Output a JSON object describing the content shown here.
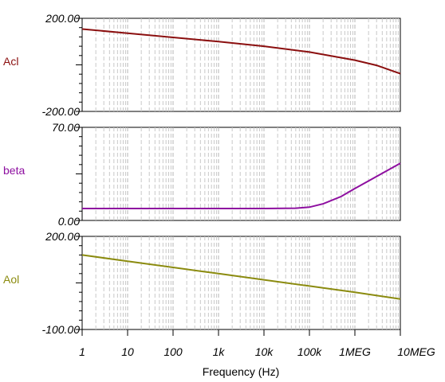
{
  "chart_data": [
    {
      "type": "line",
      "name": "Acl",
      "color": "#8b0f0f",
      "xscale": "log",
      "xlim": [
        1,
        10000000
      ],
      "ylim": [
        -200,
        200
      ],
      "ytick_labels": [
        "200.00",
        "-200.00"
      ],
      "series": [
        {
          "name": "Acl",
          "x": [
            1,
            10,
            100,
            1000,
            10000,
            100000,
            1000000,
            3000000,
            10000000
          ],
          "y": [
            154,
            136,
            118,
            100,
            80,
            55,
            20,
            -2,
            -38
          ]
        }
      ]
    },
    {
      "type": "line",
      "name": "beta",
      "color": "#8e0fa0",
      "xscale": "log",
      "xlim": [
        1,
        10000000
      ],
      "ylim": [
        0,
        70
      ],
      "ytick_labels": [
        "70.00",
        "0.00"
      ],
      "series": [
        {
          "name": "beta",
          "x": [
            1,
            10,
            100,
            1000,
            10000,
            50000,
            100000,
            200000,
            500000,
            1000000,
            3000000,
            10000000
          ],
          "y": [
            9,
            9,
            9,
            9,
            9,
            9.2,
            10,
            12.5,
            18,
            24,
            33,
            43
          ]
        }
      ]
    },
    {
      "type": "line",
      "name": "Aol",
      "color": "#8b8b0f",
      "xscale": "log",
      "xlim": [
        1,
        10000000
      ],
      "ylim": [
        -100,
        200
      ],
      "ytick_labels": [
        "200.00",
        "-100.00"
      ],
      "series": [
        {
          "name": "Aol",
          "x": [
            1,
            10,
            100,
            1000,
            10000,
            100000,
            1000000,
            10000000
          ],
          "y": [
            140,
            120,
            100,
            80,
            60,
            40,
            20,
            -2
          ]
        }
      ]
    }
  ],
  "x_axis": {
    "title": "Frequency (Hz)",
    "tick_values": [
      1,
      10,
      100,
      1000,
      10000,
      100000,
      1000000,
      10000000
    ],
    "tick_labels": [
      "1",
      "10",
      "100",
      "1k",
      "10k",
      "100k",
      "1MEG",
      "10MEG"
    ]
  }
}
